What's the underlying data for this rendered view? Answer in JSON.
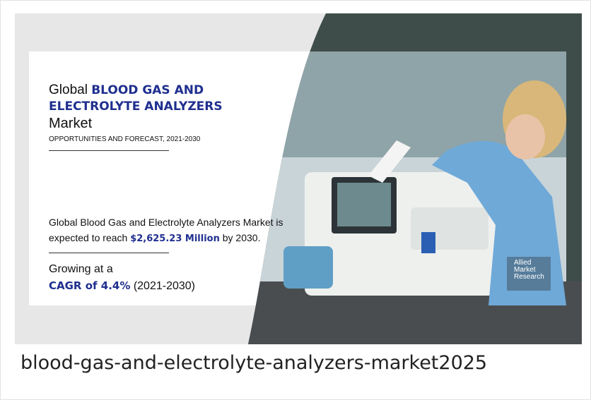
{
  "banner": {
    "title_prefix": "Global",
    "title_highlight_1": "BLOOD GAS AND",
    "title_highlight_2": "ELECTROLYTE ANALYZERS",
    "title_suffix": "Market",
    "subtitle": "OPPORTUNITIES AND FORECAST, 2021-2030",
    "statement_line_1": "Global Blood Gas and Electrolyte Analyzers Market is",
    "statement_prefix": "expected to reach",
    "statement_value": "$2,625.23 Million",
    "statement_suffix": "by 2030.",
    "growth_prefix": "Growing at a",
    "growth_value": "CAGR of 4.4%",
    "growth_period": "(2021-2030)",
    "logo": [
      "Allied",
      "Market",
      "Research"
    ]
  },
  "caption": "blood-gas-and-electrolyte-analyzers-market2025"
}
